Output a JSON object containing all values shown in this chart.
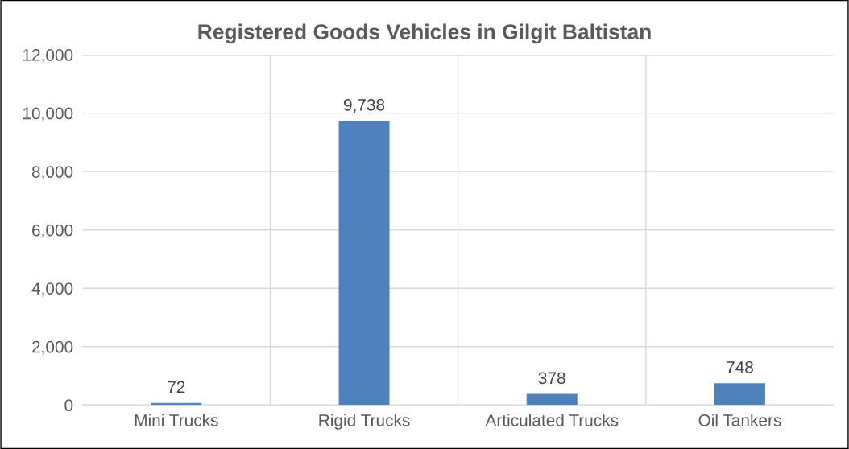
{
  "chart_data": {
    "type": "bar",
    "title": "Registered Goods Vehicles in Gilgit Baltistan",
    "categories": [
      "Mini Trucks",
      "Rigid Trucks",
      "Articulated Trucks",
      "Oil Tankers"
    ],
    "values": [
      72,
      9738,
      378,
      748
    ],
    "color": "#4f81bd",
    "value_labels": [
      "72",
      "9,738",
      "378",
      "748"
    ],
    "ylim": [
      0,
      12000
    ],
    "yticks": [
      {
        "value": 0,
        "label": "0"
      },
      {
        "value": 2000,
        "label": "2,000"
      },
      {
        "value": 4000,
        "label": "4,000"
      },
      {
        "value": 6000,
        "label": "6,000"
      },
      {
        "value": 8000,
        "label": "8,000"
      },
      {
        "value": 10000,
        "label": "10,000"
      },
      {
        "value": 12000,
        "label": "12,000"
      }
    ],
    "grid": true,
    "legend": false
  }
}
